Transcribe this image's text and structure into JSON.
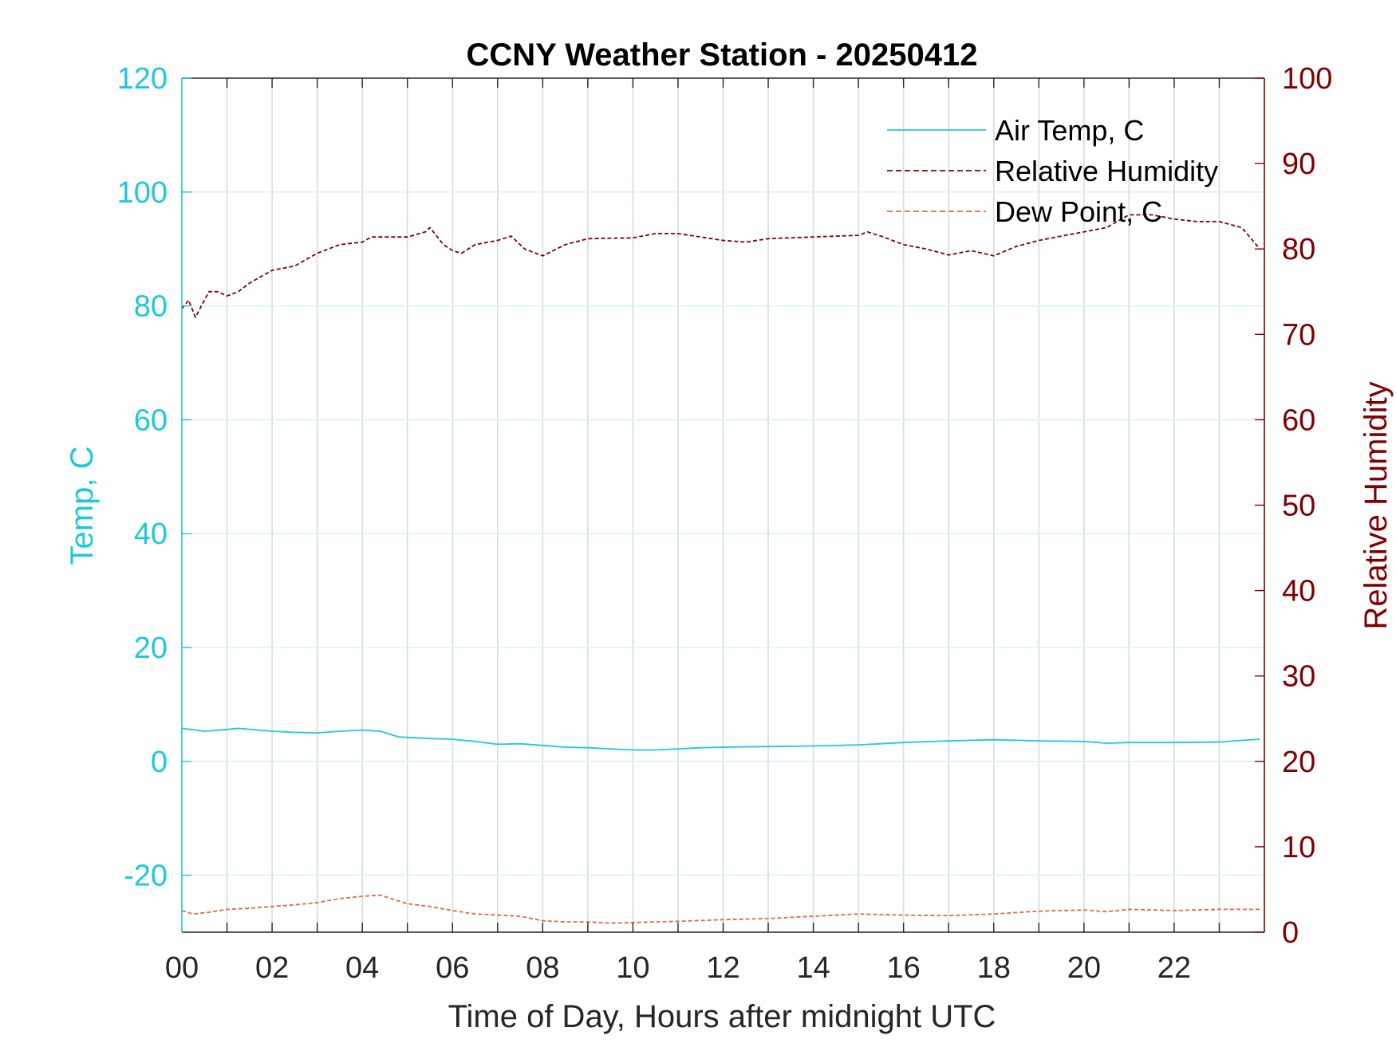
{
  "chart_data": {
    "type": "line",
    "title": "CCNY Weather Station - 20250412",
    "xlabel": "Time of Day, Hours after midnight UTC",
    "ylabel_left": "Temp, C",
    "ylabel_right": "Relative Humidity",
    "xlim": [
      0,
      24
    ],
    "ylim_left": [
      -30,
      120
    ],
    "ylim_right": [
      0,
      100
    ],
    "x_ticks": [
      0,
      2,
      4,
      6,
      8,
      10,
      12,
      14,
      16,
      18,
      20,
      22
    ],
    "x_tick_labels": [
      "00",
      "02",
      "04",
      "06",
      "08",
      "10",
      "12",
      "14",
      "16",
      "18",
      "20",
      "22"
    ],
    "y_left_ticks": [
      -20,
      0,
      20,
      40,
      60,
      80,
      100,
      120
    ],
    "y_left_tick_labels": [
      "-20",
      "0",
      "20",
      "40",
      "60",
      "80",
      "100",
      "120"
    ],
    "y_right_ticks": [
      0,
      10,
      20,
      30,
      40,
      50,
      60,
      70,
      80,
      90,
      100
    ],
    "y_right_tick_labels": [
      "0",
      "10",
      "20",
      "30",
      "40",
      "50",
      "60",
      "70",
      "80",
      "90",
      "100"
    ],
    "grid": true,
    "legend_position": "top-right",
    "colors": {
      "air_temp": "#1ec8dc",
      "humidity": "#7f0000",
      "dew_point": "#e06a3c",
      "left_axis": "#1ec8dc",
      "right_axis": "#7f0000",
      "grid_vertical": "#d6dce0",
      "grid_horizontal": "#d9f2f6"
    },
    "series": [
      {
        "name": "Air Temp, C",
        "axis": "left",
        "style": "solid",
        "x": [
          0,
          0.5,
          1,
          1.25,
          2,
          2.5,
          3,
          3.5,
          4,
          4.4,
          4.8,
          5.5,
          6,
          6.5,
          7,
          7.5,
          8,
          8.5,
          9,
          9.5,
          10,
          10.5,
          11,
          11.5,
          12,
          13,
          14,
          15,
          16,
          17,
          18,
          18.5,
          19,
          20,
          20.5,
          21,
          22,
          23,
          23.9
        ],
        "values": [
          5.8,
          5.3,
          5.6,
          5.8,
          5.3,
          5.1,
          5.0,
          5.3,
          5.5,
          5.3,
          4.3,
          4.0,
          3.9,
          3.5,
          3.0,
          3.1,
          2.8,
          2.5,
          2.4,
          2.2,
          2.0,
          2.0,
          2.2,
          2.4,
          2.5,
          2.6,
          2.7,
          2.9,
          3.3,
          3.6,
          3.8,
          3.7,
          3.6,
          3.5,
          3.2,
          3.3,
          3.3,
          3.4,
          3.9
        ]
      },
      {
        "name": "Relative Humidity",
        "axis": "right",
        "style": "dashed",
        "x": [
          0,
          0.15,
          0.3,
          0.45,
          0.6,
          0.8,
          1.0,
          1.25,
          1.5,
          2.0,
          2.5,
          3.0,
          3.5,
          4.0,
          4.2,
          4.6,
          5.0,
          5.4,
          5.5,
          5.8,
          6.0,
          6.2,
          6.5,
          7.0,
          7.3,
          7.6,
          8.0,
          8.5,
          9.0,
          10.0,
          10.5,
          11.0,
          11.5,
          12.0,
          12.5,
          13.0,
          14.0,
          14.5,
          15.0,
          15.2,
          15.5,
          16.0,
          16.5,
          17.0,
          17.5,
          18.0,
          18.5,
          19.0,
          19.5,
          20.0,
          20.5,
          21.0,
          21.5,
          22.0,
          22.5,
          23.0,
          23.5,
          23.9
        ],
        "values": [
          73,
          74,
          72,
          73.5,
          75,
          75,
          74.5,
          75,
          76,
          77.5,
          78,
          79.5,
          80.5,
          80.8,
          81.4,
          81.4,
          81.4,
          82,
          82.5,
          80.5,
          79.8,
          79.5,
          80.5,
          81,
          81.5,
          80,
          79.2,
          80.5,
          81.2,
          81.3,
          81.8,
          81.8,
          81.4,
          81,
          80.8,
          81.2,
          81.4,
          81.5,
          81.6,
          82,
          81.5,
          80.5,
          80,
          79.3,
          79.8,
          79.2,
          80.3,
          81,
          81.5,
          82,
          82.5,
          84,
          84,
          83.5,
          83.2,
          83.2,
          82.5,
          80
        ]
      },
      {
        "name": "Dew Point, C",
        "axis": "left",
        "style": "dashed",
        "x": [
          0,
          0.25,
          0.6,
          1.0,
          1.5,
          2.0,
          2.5,
          3.0,
          3.5,
          4.0,
          4.4,
          5.0,
          5.5,
          6.0,
          6.5,
          7.0,
          7.5,
          8.0,
          8.5,
          9.0,
          9.5,
          10.0,
          11.0,
          12.0,
          13.0,
          14.0,
          15.0,
          16.0,
          17.0,
          18.0,
          19.0,
          20.0,
          20.5,
          21.0,
          22.0,
          23.0,
          23.9
        ],
        "values": [
          -26.2,
          -26.8,
          -26.5,
          -26.0,
          -25.8,
          -25.5,
          -25.2,
          -24.8,
          -24.1,
          -23.7,
          -23.5,
          -25.0,
          -25.5,
          -26.2,
          -26.8,
          -27.0,
          -27.2,
          -28.0,
          -28.2,
          -28.2,
          -28.4,
          -28.3,
          -28.1,
          -27.8,
          -27.6,
          -27.2,
          -26.8,
          -27.0,
          -27.1,
          -26.8,
          -26.3,
          -26.1,
          -26.4,
          -26.0,
          -26.2,
          -26.0,
          -26.0
        ]
      }
    ]
  }
}
